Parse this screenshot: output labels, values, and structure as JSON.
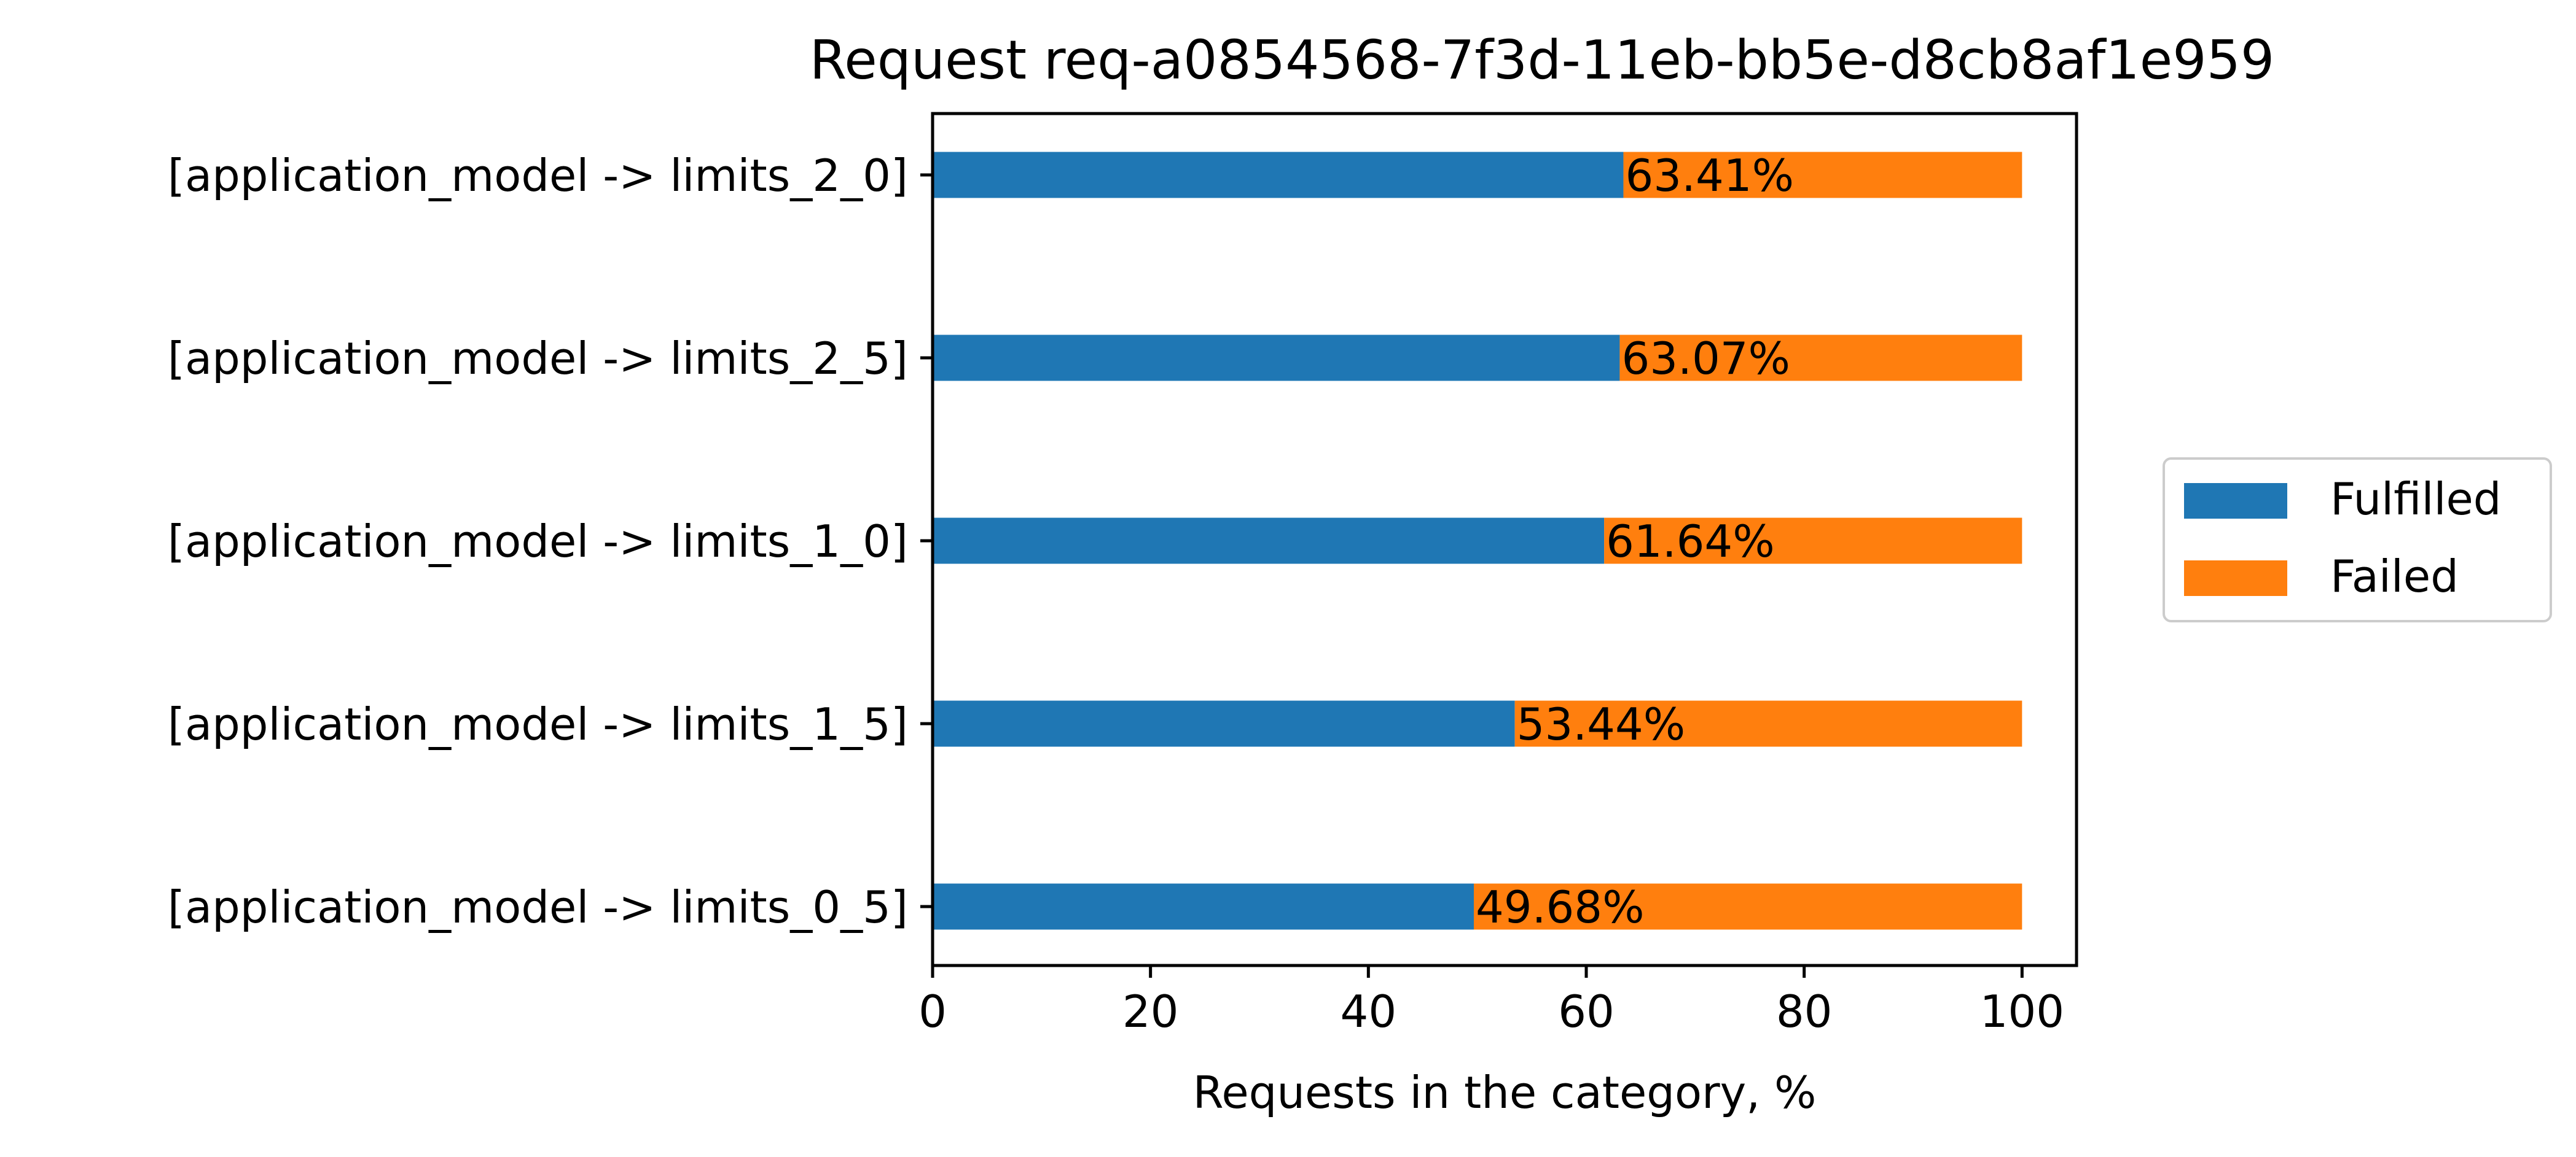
{
  "chart_data": {
    "type": "bar",
    "orientation": "horizontal",
    "stacked": true,
    "title": "Request req-a0854568-7f3d-11eb-bb5e-d8cb8af1e959",
    "xlabel": "Requests in the category, %",
    "ylabel": "",
    "xlim": [
      0,
      105
    ],
    "xticks": [
      0,
      20,
      40,
      60,
      80,
      100
    ],
    "grid": false,
    "legend_position": "right",
    "categories": [
      "[application_model -> limits_2_0]",
      "[application_model -> limits_2_5]",
      "[application_model -> limits_1_0]",
      "[application_model -> limits_1_5]",
      "[application_model -> limits_0_5]"
    ],
    "series": [
      {
        "name": "Fulfilled",
        "color": "#1f77b4",
        "values": [
          63.41,
          63.07,
          61.64,
          53.44,
          49.68
        ]
      },
      {
        "name": "Failed",
        "color": "#ff7f0e",
        "values": [
          36.59,
          36.93,
          38.36,
          46.56,
          50.32
        ]
      }
    ],
    "data_labels": [
      "63.41%",
      "63.07%",
      "61.64%",
      "53.44%",
      "49.68%"
    ]
  }
}
